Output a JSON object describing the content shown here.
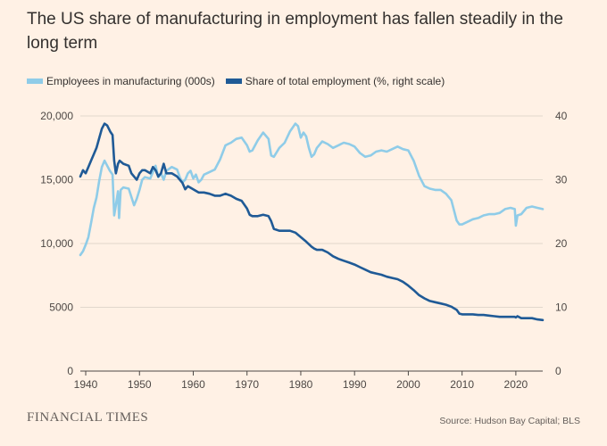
{
  "title": "The US share of manufacturing in employment has fallen steadily in the long term",
  "brand": "FINANCIAL TIMES",
  "source": "Source: Hudson Bay Capital; BLS",
  "colors": {
    "employees": "#8fcce8",
    "share": "#1f5a96",
    "background": "#fff1e5",
    "grid": "#e1d7cc",
    "text": "#4d4845"
  },
  "chart_data": {
    "type": "line",
    "title": "The US share of manufacturing in employment has fallen steadily in the long term",
    "xlabel": "",
    "ylabel_left": "",
    "ylabel_right": "",
    "xlim": [
      1939,
      2025
    ],
    "ylim_left": [
      0,
      20000
    ],
    "ylim_right": [
      0,
      40
    ],
    "x_ticks": [
      "1940",
      "1950",
      "1960",
      "1970",
      "1980",
      "1990",
      "2000",
      "2010",
      "2020"
    ],
    "y_ticks_left": [
      "0",
      "5000",
      "10,000",
      "15,000",
      "20,000"
    ],
    "y_ticks_right": [
      "0",
      "10",
      "20",
      "30",
      "40"
    ],
    "grid": true,
    "legend_position": "top-left",
    "series": [
      {
        "name": "Employees in manufacturing (000s)",
        "axis": "left",
        "color": "#8fcce8",
        "x": [
          1939,
          1939.5,
          1940,
          1940.5,
          1941,
          1941.5,
          1942,
          1942.5,
          1943,
          1943.5,
          1944,
          1944.5,
          1945,
          1945.3,
          1945.6,
          1946,
          1946.2,
          1946.5,
          1947,
          1948,
          1949,
          1949.5,
          1950,
          1950.5,
          1951,
          1952,
          1952.5,
          1953,
          1953.5,
          1954,
          1954.5,
          1955,
          1956,
          1957,
          1957.5,
          1958,
          1958.5,
          1959,
          1959.5,
          1960,
          1960.5,
          1961,
          1961.5,
          1962,
          1963,
          1964,
          1965,
          1966,
          1967,
          1968,
          1969,
          1970,
          1970.5,
          1971,
          1972,
          1973,
          1974,
          1974.5,
          1975,
          1976,
          1977,
          1978,
          1979,
          1979.5,
          1980,
          1980.5,
          1981,
          1981.5,
          1982,
          1982.5,
          1983,
          1984,
          1985,
          1986,
          1987,
          1988,
          1989,
          1990,
          1991,
          1992,
          1993,
          1994,
          1995,
          1996,
          1997,
          1998,
          1999,
          2000,
          2001,
          2002,
          2003,
          2004,
          2005,
          2006,
          2007,
          2008,
          2009,
          2009.5,
          2010,
          2011,
          2012,
          2013,
          2014,
          2015,
          2016,
          2017,
          2018,
          2019,
          2019.8,
          2020,
          2020.3,
          2021,
          2022,
          2023,
          2024,
          2025
        ],
        "values": [
          9100,
          9400,
          9900,
          10500,
          11600,
          12800,
          13600,
          14900,
          16000,
          16500,
          16100,
          15700,
          15400,
          12200,
          13000,
          14100,
          12000,
          14200,
          14400,
          14300,
          13000,
          13500,
          14200,
          15000,
          15200,
          15100,
          15600,
          16100,
          15200,
          15500,
          15000,
          15700,
          16000,
          15800,
          15200,
          14800,
          15000,
          15500,
          15700,
          15100,
          15400,
          14800,
          15000,
          15400,
          15600,
          15800,
          16600,
          17700,
          17900,
          18200,
          18300,
          17700,
          17200,
          17300,
          18100,
          18700,
          18200,
          16900,
          16800,
          17500,
          17900,
          18800,
          19400,
          19200,
          18300,
          18700,
          18400,
          17500,
          16800,
          17000,
          17500,
          18000,
          17800,
          17500,
          17700,
          17900,
          17800,
          17600,
          17100,
          16800,
          16900,
          17200,
          17300,
          17200,
          17400,
          17600,
          17400,
          17300,
          16500,
          15300,
          14500,
          14300,
          14200,
          14200,
          13900,
          13400,
          11800,
          11500,
          11500,
          11700,
          11900,
          12000,
          12200,
          12300,
          12300,
          12400,
          12700,
          12800,
          12700,
          11400,
          12200,
          12300,
          12800,
          12900,
          12800,
          12700
        ]
      },
      {
        "name": "Share of total employment (%, right scale)",
        "axis": "right",
        "color": "#1f5a96",
        "x": [
          1939,
          1939.5,
          1940,
          1940.5,
          1941,
          1941.5,
          1942,
          1942.5,
          1943,
          1943.5,
          1944,
          1944.3,
          1944.6,
          1945,
          1945.3,
          1945.6,
          1946,
          1946.3,
          1947,
          1948,
          1948.5,
          1949,
          1949.5,
          1950,
          1950.5,
          1951,
          1952,
          1952.5,
          1953,
          1953.5,
          1954,
          1954.5,
          1955,
          1956,
          1957,
          1958,
          1958.5,
          1959,
          1960,
          1961,
          1962,
          1963,
          1964,
          1965,
          1966,
          1967,
          1968,
          1969,
          1970,
          1970.5,
          1971,
          1972,
          1973,
          1974,
          1974.5,
          1975,
          1976,
          1977,
          1978,
          1979,
          1980,
          1981,
          1982,
          1982.5,
          1983,
          1984,
          1985,
          1986,
          1987,
          1988,
          1989,
          1990,
          1991,
          1992,
          1993,
          1994,
          1995,
          1996,
          1997,
          1998,
          1999,
          2000,
          2001,
          2002,
          2003,
          2004,
          2005,
          2006,
          2007,
          2008,
          2009,
          2009.5,
          2010,
          2011,
          2012,
          2013,
          2014,
          2015,
          2016,
          2017,
          2018,
          2019,
          2019.8,
          2020,
          2020.3,
          2021,
          2022,
          2023,
          2024,
          2025
        ],
        "values": [
          30.5,
          31.5,
          31,
          32,
          33,
          34,
          35,
          36.5,
          38,
          38.8,
          38.5,
          38,
          37.5,
          37,
          33,
          31,
          32.5,
          33,
          32.5,
          32.2,
          31,
          30.5,
          30,
          31,
          31.5,
          31.5,
          31,
          32,
          31.5,
          30.5,
          31,
          32.5,
          31,
          31,
          30.5,
          29.5,
          28.5,
          29,
          28.5,
          28,
          28,
          27.8,
          27.5,
          27.5,
          27.8,
          27.5,
          27,
          26.7,
          25.5,
          24.5,
          24.3,
          24.3,
          24.5,
          24.3,
          23.5,
          22.3,
          22,
          22,
          22,
          21.7,
          21,
          20.3,
          19.5,
          19.2,
          19,
          19,
          18.6,
          18,
          17.6,
          17.3,
          17,
          16.7,
          16.3,
          15.9,
          15.5,
          15.3,
          15.1,
          14.8,
          14.6,
          14.4,
          14,
          13.4,
          12.7,
          11.9,
          11.4,
          11,
          10.8,
          10.6,
          10.4,
          10.1,
          9.6,
          9.0,
          8.9,
          8.9,
          8.9,
          8.8,
          8.8,
          8.7,
          8.6,
          8.5,
          8.5,
          8.5,
          8.5,
          8.4,
          8.6,
          8.3,
          8.3,
          8.3,
          8.1,
          8.0
        ]
      }
    ]
  }
}
